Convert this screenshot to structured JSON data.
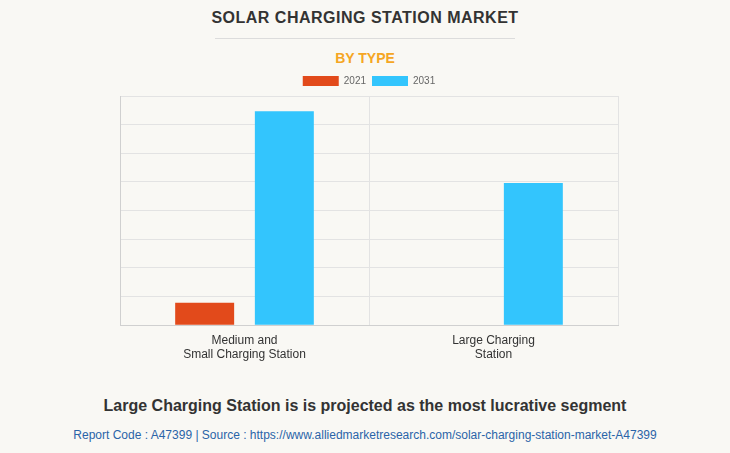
{
  "chart_data": {
    "type": "bar",
    "title": "SOLAR CHARGING STATION MARKET",
    "subtitle": "BY TYPE",
    "categories": [
      [
        "Medium and",
        "Small Charging Station"
      ],
      [
        "Large Charging",
        "Station"
      ]
    ],
    "series": [
      {
        "name": "2021",
        "color": "#e24a1b",
        "values": [
          0.78,
          0
        ]
      },
      {
        "name": "2031",
        "color": "#33c5fd",
        "values": [
          7.47,
          4.96
        ]
      }
    ],
    "ylim": [
      0,
      8
    ],
    "yticks": [
      0,
      1,
      2,
      3,
      4,
      5,
      6,
      7,
      8
    ],
    "grid": true,
    "legend": "top",
    "tick_labels": "x",
    "caption": "Large Charging Station is is projected as the most lucrative segment",
    "source": "Report Code : A47399  |  Source : https://www.alliedmarketresearch.com/solar-charging-station-market-A47399"
  }
}
